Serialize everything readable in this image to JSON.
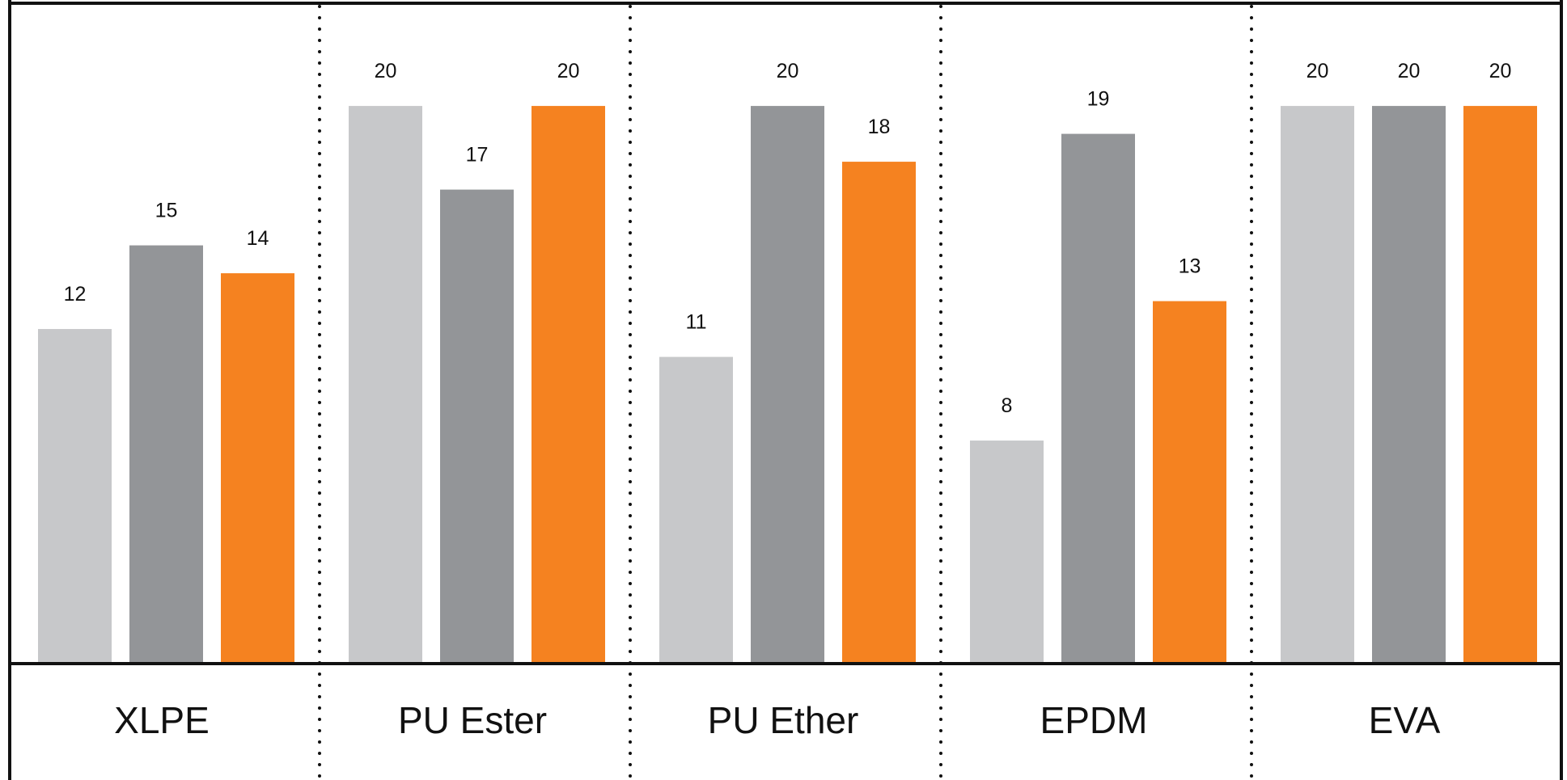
{
  "chart_data": {
    "type": "bar",
    "title": "",
    "xlabel": "",
    "ylabel": "",
    "ylim": [
      0,
      23.8
    ],
    "grid": false,
    "legend": "none",
    "categories": [
      "XLPE",
      "PU Ester",
      "PU Ether",
      "EPDM",
      "EVA"
    ],
    "series": [
      {
        "color": "#c7c8ca",
        "values": [
          12,
          20,
          11,
          8,
          20
        ]
      },
      {
        "color": "#939598",
        "values": [
          15,
          17,
          20,
          19,
          20
        ]
      },
      {
        "color": "#f58220",
        "values": [
          14,
          20,
          18,
          13,
          20
        ]
      }
    ]
  },
  "colors": {
    "frame": "#111111",
    "divider": "#111111",
    "text": "#111111"
  }
}
